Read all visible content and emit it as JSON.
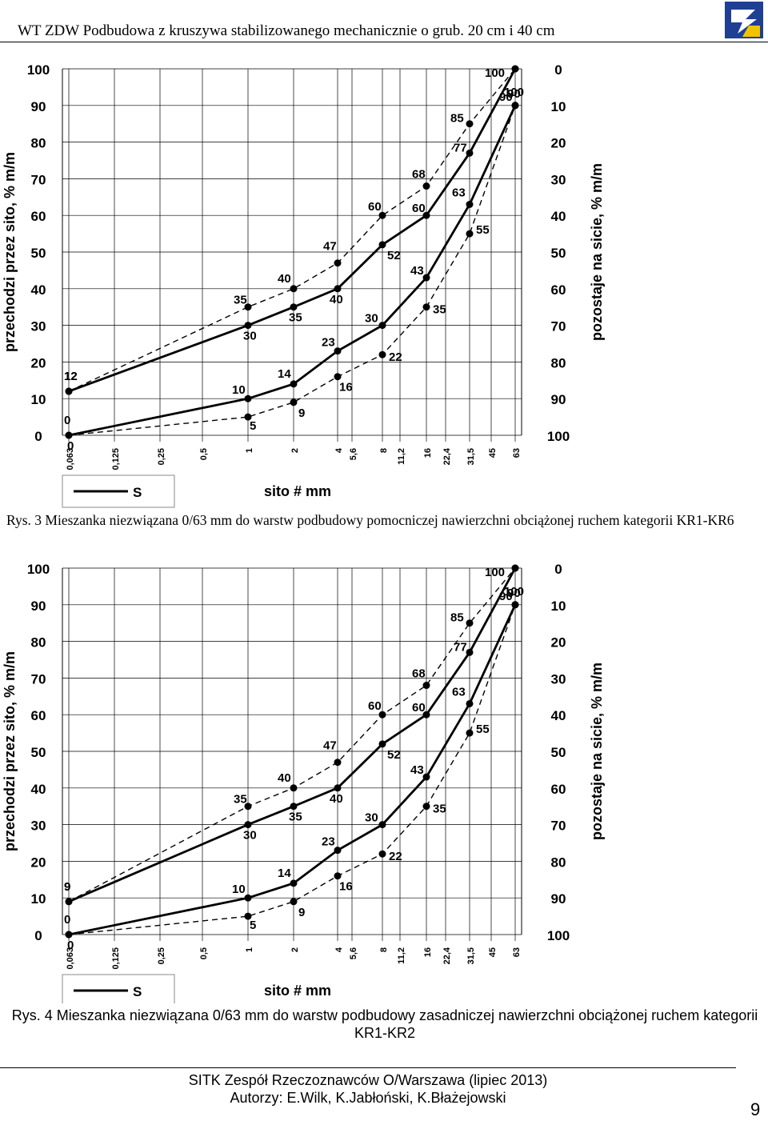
{
  "header": {
    "title": "WT ZDW Podbudowa z kruszywa stabilizowanego mechanicznie o grub. 20 cm i 40 cm"
  },
  "chart_data": [
    {
      "type": "line",
      "caption": "Rys. 3 Mieszanka niezwiązana 0/63 mm do warstw podbudowy pomocniczej nawierzchni obciążonej ruchem kategorii KR1-KR6",
      "xlabel": "sito # mm",
      "ylabel": "przechodzi przez sito, % m/m",
      "y2label": "pozostaje na sicie, % m/m",
      "categories": [
        "0,063",
        "0,125",
        "0,25",
        "0,5",
        "1",
        "2",
        "4",
        "5,6",
        "8",
        "11,2",
        "16",
        "22,4",
        "31,5",
        "45",
        "63"
      ],
      "yticks": [
        0,
        10,
        20,
        30,
        40,
        50,
        60,
        70,
        80,
        90,
        100
      ],
      "y2ticks": [
        100,
        90,
        80,
        70,
        60,
        50,
        40,
        30,
        20,
        10,
        0
      ],
      "ylim": [
        0,
        100
      ],
      "legend": "S",
      "series": [
        {
          "name": "upper-dashed",
          "style": "dashed",
          "x": [
            "0,063",
            "1",
            "2",
            "4",
            "8",
            "16",
            "31,5",
            "63"
          ],
          "values": [
            12,
            35,
            40,
            47,
            60,
            68,
            85,
            100
          ]
        },
        {
          "name": "upper-solid",
          "style": "solid",
          "x": [
            "0,063",
            "1",
            "2",
            "4",
            "8",
            "16",
            "31,5",
            "63"
          ],
          "values": [
            12,
            30,
            35,
            40,
            52,
            60,
            77,
            100
          ]
        },
        {
          "name": "lower-solid",
          "style": "solid",
          "x": [
            "0,063",
            "1",
            "2",
            "4",
            "8",
            "16",
            "31,5",
            "63"
          ],
          "values": [
            0,
            10,
            14,
            23,
            30,
            43,
            63,
            90
          ]
        },
        {
          "name": "lower-dashed",
          "style": "dashed",
          "x": [
            "0,063",
            "1",
            "2",
            "4",
            "8",
            "16",
            "31,5",
            "63"
          ],
          "values": [
            0,
            5,
            9,
            16,
            22,
            35,
            55,
            90
          ]
        }
      ]
    },
    {
      "type": "line",
      "caption": "Rys. 4 Mieszanka niezwiązana 0/63 mm do warstw podbudowy zasadniczej nawierzchni obciążonej ruchem kategorii KR1-KR2",
      "xlabel": "sito # mm",
      "ylabel": "przechodzi przez sito, % m/m",
      "y2label": "pozostaje na sicie, % m/m",
      "categories": [
        "0,063",
        "0,125",
        "0,25",
        "0,5",
        "1",
        "2",
        "4",
        "5,6",
        "8",
        "11,2",
        "16",
        "22,4",
        "31,5",
        "45",
        "63"
      ],
      "yticks": [
        0,
        10,
        20,
        30,
        40,
        50,
        60,
        70,
        80,
        90,
        100
      ],
      "y2ticks": [
        100,
        90,
        80,
        70,
        60,
        50,
        40,
        30,
        20,
        10,
        0
      ],
      "ylim": [
        0,
        100
      ],
      "legend": "S",
      "series": [
        {
          "name": "upper-dashed",
          "style": "dashed",
          "x": [
            "0,063",
            "1",
            "2",
            "4",
            "8",
            "16",
            "31,5",
            "63"
          ],
          "values": [
            9,
            35,
            40,
            47,
            60,
            68,
            85,
            100
          ]
        },
        {
          "name": "upper-solid",
          "style": "solid",
          "x": [
            "0,063",
            "1",
            "2",
            "4",
            "8",
            "16",
            "31,5",
            "63"
          ],
          "values": [
            9,
            30,
            35,
            40,
            52,
            60,
            77,
            100
          ]
        },
        {
          "name": "lower-solid",
          "style": "solid",
          "x": [
            "0,063",
            "1",
            "2",
            "4",
            "8",
            "16",
            "31,5",
            "63"
          ],
          "values": [
            0,
            10,
            14,
            23,
            30,
            43,
            63,
            90
          ]
        },
        {
          "name": "lower-dashed",
          "style": "dashed",
          "x": [
            "0,063",
            "1",
            "2",
            "4",
            "8",
            "16",
            "31,5",
            "63"
          ],
          "values": [
            0,
            5,
            9,
            16,
            22,
            35,
            55,
            90
          ]
        }
      ]
    }
  ],
  "captions": {
    "rys3_a": "Rys. 3",
    "rys3_b": " Mieszanka niezwiązana 0/63 mm do warstw podbudowy pomocniczej nawierzchni obciążonej ruchem kategorii KR1-KR6",
    "rys4": "Rys. 4 Mieszanka niezwiązana 0/63 mm do warstw podbudowy zasadniczej nawierzchni obciążonej ruchem kategorii KR1-KR2"
  },
  "footer": {
    "org": "SITK Zespół Rzeczoznawców O/Warszawa (lipiec 2013)",
    "authors": "Autorzy: E.Wilk, K.Jabłoński, K.Błażejowski",
    "page": "9"
  },
  "colors": {
    "ink": "#000000",
    "grid": "#000000",
    "logo_blue": "#1f3f93",
    "logo_yellow": "#f2c200"
  }
}
